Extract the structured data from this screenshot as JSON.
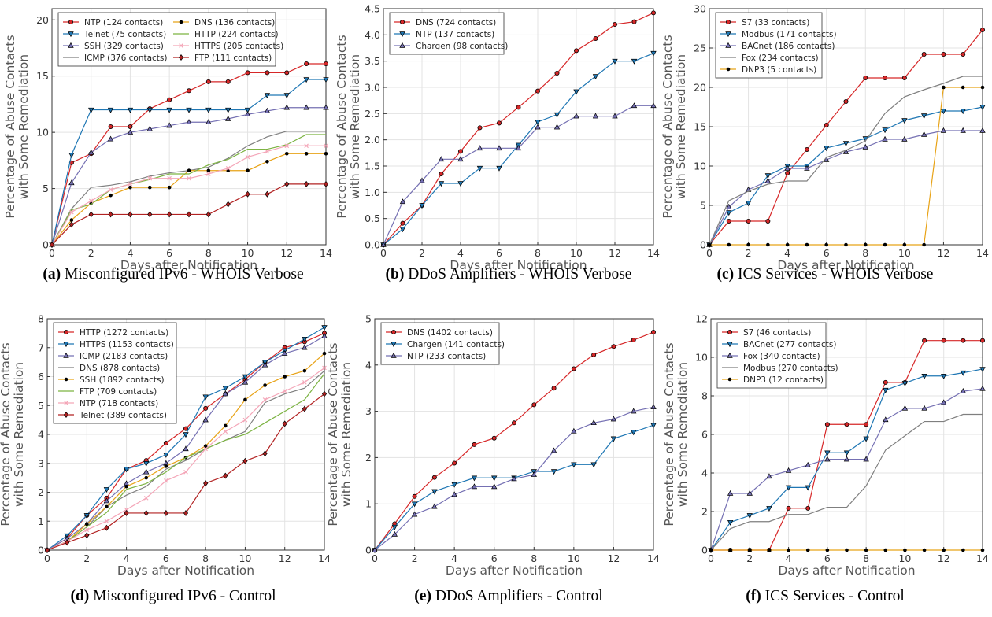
{
  "chart_data": [
    {
      "id": "a",
      "type": "line",
      "caption_label": "(a)",
      "caption": "Misconfigured IPv6 - WHOIS Verbose",
      "xlabel": "Days after Notification",
      "ylabel": [
        "Percentage of Abuse Contacts",
        "with Some Remediation"
      ],
      "xlim": [
        0,
        14
      ],
      "ylim": [
        0,
        21
      ],
      "xticks": [
        0,
        2,
        4,
        6,
        8,
        10,
        12,
        14
      ],
      "yticks": [
        0,
        5,
        10,
        15,
        20
      ],
      "grid": true,
      "legend_position": "top-left",
      "legend_columns": 2,
      "x": [
        0,
        1,
        2,
        3,
        4,
        5,
        6,
        7,
        8,
        9,
        10,
        11,
        12,
        13,
        14
      ],
      "series": [
        {
          "name": "NTP (124 contacts)",
          "color": "#d62728",
          "marker": "circle",
          "values": [
            0,
            7.3,
            8.1,
            10.5,
            10.5,
            12.1,
            12.9,
            13.7,
            14.5,
            14.5,
            15.3,
            15.3,
            15.3,
            16.1,
            16.1
          ]
        },
        {
          "name": "Telnet (75 contacts)",
          "color": "#1f77b4",
          "marker": "tri-down",
          "values": [
            0,
            8.0,
            12.0,
            12.0,
            12.0,
            12.0,
            12.0,
            12.0,
            12.0,
            12.0,
            12.0,
            13.3,
            13.3,
            14.7,
            14.7
          ]
        },
        {
          "name": "SSH (329 contacts)",
          "color": "#7570b3",
          "marker": "tri-up",
          "values": [
            0,
            5.5,
            8.2,
            9.4,
            10.0,
            10.3,
            10.6,
            10.9,
            10.9,
            11.2,
            11.6,
            11.9,
            12.2,
            12.2,
            12.2
          ]
        },
        {
          "name": "ICMP (376 contacts)",
          "color": "#7f7f7f",
          "marker": "none",
          "values": [
            0,
            3.2,
            5.1,
            5.3,
            5.6,
            6.1,
            6.4,
            6.6,
            6.9,
            7.7,
            8.8,
            9.6,
            10.1,
            10.1,
            10.1
          ]
        },
        {
          "name": "DNS (136 contacts)",
          "color": "#e8a317",
          "marker": "dot",
          "values": [
            0,
            2.2,
            3.7,
            4.4,
            5.1,
            5.1,
            5.1,
            6.6,
            6.6,
            6.6,
            6.6,
            7.4,
            8.1,
            8.1,
            8.1
          ]
        },
        {
          "name": "HTTP (224 contacts)",
          "color": "#7cb342",
          "marker": "none",
          "values": [
            0,
            3.1,
            3.6,
            4.9,
            5.4,
            5.8,
            6.3,
            6.3,
            7.1,
            7.6,
            8.5,
            8.5,
            8.9,
            9.8,
            9.8
          ]
        },
        {
          "name": "HTTPS (205 contacts)",
          "color": "#f4a6b8",
          "marker": "cross",
          "values": [
            0,
            2.9,
            3.9,
            4.9,
            5.4,
            5.9,
            5.9,
            5.9,
            6.3,
            6.8,
            7.8,
            8.3,
            8.8,
            8.8,
            8.8
          ]
        },
        {
          "name": "FTP (111 contacts)",
          "color": "#b22222",
          "marker": "diamond",
          "values": [
            0,
            1.8,
            2.7,
            2.7,
            2.7,
            2.7,
            2.7,
            2.7,
            2.7,
            3.6,
            4.5,
            4.5,
            5.4,
            5.4,
            5.4
          ]
        }
      ]
    },
    {
      "id": "b",
      "type": "line",
      "caption_label": "(b)",
      "caption": "DDoS Amplifiers - WHOIS Verbose",
      "xlabel": "Days after Notification",
      "ylabel": [
        "Percentage of Abuse Contacts",
        "with Some Remediation"
      ],
      "xlim": [
        0,
        14
      ],
      "ylim": [
        0,
        4.5
      ],
      "xticks": [
        0,
        2,
        4,
        6,
        8,
        10,
        12,
        14
      ],
      "yticks": [
        "0.0",
        "0.5",
        "1.0",
        "1.5",
        "2.0",
        "2.5",
        "3.0",
        "3.5",
        "4.0",
        "4.5"
      ],
      "grid": true,
      "legend_position": "top-left",
      "legend_columns": 1,
      "x": [
        0,
        1,
        2,
        3,
        4,
        5,
        6,
        7,
        8,
        9,
        10,
        11,
        12,
        13,
        14
      ],
      "series": [
        {
          "name": "DNS (724 contacts)",
          "color": "#d62728",
          "marker": "circle",
          "values": [
            0,
            0.41,
            0.75,
            1.35,
            1.78,
            2.23,
            2.32,
            2.62,
            2.93,
            3.27,
            3.7,
            3.93,
            4.2,
            4.25,
            4.42
          ]
        },
        {
          "name": "NTP (137 contacts)",
          "color": "#1f77b4",
          "marker": "tri-down",
          "values": [
            0,
            0.3,
            0.75,
            1.17,
            1.17,
            1.46,
            1.46,
            1.9,
            2.34,
            2.48,
            2.92,
            3.21,
            3.5,
            3.5,
            3.65
          ]
        },
        {
          "name": "Chargen (98 contacts)",
          "color": "#7570b3",
          "marker": "tri-up",
          "values": [
            0,
            0.82,
            1.22,
            1.63,
            1.63,
            1.84,
            1.84,
            1.84,
            2.24,
            2.24,
            2.45,
            2.45,
            2.45,
            2.65,
            2.65
          ]
        }
      ]
    },
    {
      "id": "c",
      "type": "line",
      "caption_label": "(c)",
      "caption": "ICS Services - WHOIS Verbose",
      "xlabel": "Days after Notification",
      "ylabel": [
        "Percentage of Abuse Contacts",
        "with Some Remediation"
      ],
      "xlim": [
        0,
        14
      ],
      "ylim": [
        0,
        30
      ],
      "xticks": [
        0,
        2,
        4,
        6,
        8,
        10,
        12,
        14
      ],
      "yticks": [
        0,
        5,
        10,
        15,
        20,
        25,
        30
      ],
      "grid": true,
      "legend_position": "top-left",
      "legend_columns": 1,
      "x": [
        0,
        1,
        2,
        3,
        4,
        5,
        6,
        7,
        8,
        9,
        10,
        11,
        12,
        13,
        14
      ],
      "series": [
        {
          "name": "S7 (33 contacts)",
          "color": "#d62728",
          "marker": "circle",
          "values": [
            0,
            3.0,
            3.0,
            3.0,
            9.1,
            12.1,
            15.2,
            18.2,
            21.2,
            21.2,
            21.2,
            24.2,
            24.2,
            24.2,
            27.3
          ]
        },
        {
          "name": "Modbus (171 contacts)",
          "color": "#1f77b4",
          "marker": "tri-down",
          "values": [
            0,
            4.1,
            5.3,
            8.8,
            10.0,
            10.0,
            12.3,
            12.9,
            13.5,
            14.6,
            15.8,
            16.4,
            17.0,
            17.0,
            17.5
          ]
        },
        {
          "name": "BACnet (186 contacts)",
          "color": "#7570b3",
          "marker": "tri-up",
          "values": [
            0,
            4.8,
            7.0,
            8.1,
            9.7,
            9.7,
            10.8,
            11.8,
            12.4,
            13.4,
            13.4,
            14.0,
            14.5,
            14.5,
            14.5
          ]
        },
        {
          "name": "Fox (234 contacts)",
          "color": "#7f7f7f",
          "marker": "none",
          "values": [
            0,
            5.6,
            6.8,
            7.7,
            8.1,
            8.1,
            11.1,
            12.0,
            13.2,
            16.7,
            18.8,
            19.7,
            20.5,
            21.4,
            21.4
          ]
        },
        {
          "name": "DNP3 (5 contacts)",
          "color": "#e8a317",
          "marker": "dot",
          "values": [
            0,
            0,
            0,
            0,
            0,
            0,
            0,
            0,
            0,
            0,
            0,
            0,
            20.0,
            20.0,
            20.0
          ]
        }
      ]
    },
    {
      "id": "d",
      "type": "line",
      "caption_label": "(d)",
      "caption": "Misconfigured IPv6 - Control",
      "xlabel": "Days after Notification",
      "ylabel": [
        "Percentage of Abuse Contacts",
        "with Some Remediation"
      ],
      "xlim": [
        0,
        14
      ],
      "ylim": [
        0,
        8
      ],
      "xticks": [
        0,
        2,
        4,
        6,
        8,
        10,
        12,
        14
      ],
      "yticks": [
        0,
        1,
        2,
        3,
        4,
        5,
        6,
        7,
        8
      ],
      "grid": true,
      "legend_position": "top-left",
      "legend_columns": 1,
      "x": [
        0,
        1,
        2,
        3,
        4,
        5,
        6,
        7,
        8,
        9,
        10,
        11,
        12,
        13,
        14
      ],
      "series": [
        {
          "name": "HTTP (1272 contacts)",
          "color": "#d62728",
          "marker": "circle",
          "values": [
            0,
            0.4,
            1.2,
            1.8,
            2.8,
            3.1,
            3.7,
            4.2,
            4.9,
            5.4,
            5.9,
            6.5,
            7.0,
            7.2,
            7.5
          ]
        },
        {
          "name": "HTTPS (1153 contacts)",
          "color": "#1f77b4",
          "marker": "tri-down",
          "values": [
            0,
            0.5,
            1.2,
            2.1,
            2.8,
            3.0,
            3.3,
            4.0,
            5.3,
            5.6,
            6.0,
            6.5,
            6.9,
            7.3,
            7.7
          ]
        },
        {
          "name": "ICMP (2183 contacts)",
          "color": "#7570b3",
          "marker": "tri-up",
          "values": [
            0,
            0.4,
            0.9,
            1.7,
            2.3,
            2.7,
            3.0,
            3.5,
            4.5,
            5.4,
            5.8,
            6.4,
            6.8,
            7.0,
            7.4
          ]
        },
        {
          "name": "DNS (878 contacts)",
          "color": "#7f7f7f",
          "marker": "none",
          "values": [
            0,
            0.3,
            0.8,
            1.5,
            1.9,
            2.2,
            2.8,
            3.1,
            3.5,
            3.8,
            4.1,
            5.1,
            5.4,
            5.6,
            6.2
          ]
        },
        {
          "name": "SSH (1892 contacts)",
          "color": "#e8a317",
          "marker": "dot",
          "values": [
            0,
            0.3,
            0.9,
            1.5,
            2.2,
            2.5,
            2.9,
            3.2,
            3.6,
            4.3,
            5.2,
            5.7,
            6.0,
            6.2,
            6.8
          ]
        },
        {
          "name": "FTP (709 contacts)",
          "color": "#7cb342",
          "marker": "none",
          "values": [
            0,
            0.3,
            0.8,
            1.3,
            2.1,
            2.3,
            2.7,
            3.2,
            3.5,
            3.8,
            4.0,
            4.4,
            4.8,
            5.2,
            6.1
          ]
        },
        {
          "name": "NTP (718 contacts)",
          "color": "#f4a6b8",
          "marker": "cross",
          "values": [
            0,
            0.3,
            0.7,
            1.0,
            1.4,
            1.8,
            2.4,
            2.7,
            3.5,
            4.1,
            4.5,
            5.2,
            5.5,
            5.8,
            6.3
          ]
        },
        {
          "name": "Telnet (389 contacts)",
          "color": "#b22222",
          "marker": "diamond",
          "values": [
            0,
            0.26,
            0.51,
            0.77,
            1.28,
            1.28,
            1.28,
            1.28,
            2.31,
            2.57,
            3.08,
            3.34,
            4.37,
            4.88,
            5.4
          ]
        }
      ]
    },
    {
      "id": "e",
      "type": "line",
      "caption_label": "(e)",
      "caption": "DDoS Amplifiers - Control",
      "xlabel": "Days after Notification",
      "ylabel": [
        "Percentage of Abuse Contacts",
        "with Some Remediation"
      ],
      "xlim": [
        0,
        14
      ],
      "ylim": [
        0,
        5
      ],
      "xticks": [
        0,
        2,
        4,
        6,
        8,
        10,
        12,
        14
      ],
      "yticks": [
        0,
        1,
        2,
        3,
        4,
        5
      ],
      "grid": true,
      "legend_position": "top-left",
      "legend_columns": 1,
      "x": [
        0,
        1,
        2,
        3,
        4,
        5,
        6,
        7,
        8,
        9,
        10,
        11,
        12,
        13,
        14
      ],
      "series": [
        {
          "name": "DNS (1402 contacts)",
          "color": "#d62728",
          "marker": "circle",
          "values": [
            0,
            0.57,
            1.16,
            1.57,
            1.88,
            2.28,
            2.42,
            2.75,
            3.14,
            3.5,
            3.92,
            4.22,
            4.4,
            4.54,
            4.71
          ]
        },
        {
          "name": "Chargen (141 contacts)",
          "color": "#1f77b4",
          "marker": "tri-down",
          "values": [
            0,
            0.5,
            1.0,
            1.27,
            1.42,
            1.56,
            1.56,
            1.56,
            1.7,
            1.7,
            1.85,
            1.85,
            2.41,
            2.55,
            2.7
          ]
        },
        {
          "name": "NTP (233 contacts)",
          "color": "#7570b3",
          "marker": "tri-up",
          "values": [
            0,
            0.34,
            0.77,
            0.94,
            1.2,
            1.37,
            1.37,
            1.54,
            1.63,
            2.15,
            2.57,
            2.75,
            2.83,
            3.0,
            3.09
          ]
        }
      ]
    },
    {
      "id": "f",
      "type": "line",
      "caption_label": "(f)",
      "caption": "ICS Services - Control",
      "xlabel": "Days after Notification",
      "ylabel": [
        "Percentage of Abuse Contacts",
        "with Some Remediation"
      ],
      "xlim": [
        0,
        14
      ],
      "ylim": [
        0,
        12
      ],
      "xticks": [
        0,
        2,
        4,
        6,
        8,
        10,
        12,
        14
      ],
      "yticks": [
        0,
        2,
        4,
        6,
        8,
        10,
        12
      ],
      "grid": true,
      "legend_position": "top-left",
      "legend_columns": 1,
      "x": [
        0,
        1,
        2,
        3,
        4,
        5,
        6,
        7,
        8,
        9,
        10,
        11,
        12,
        13,
        14
      ],
      "series": [
        {
          "name": "S7 (46 contacts)",
          "color": "#d62728",
          "marker": "circle",
          "values": [
            0,
            0,
            0,
            0,
            2.17,
            2.17,
            6.52,
            6.52,
            6.52,
            8.7,
            8.7,
            10.87,
            10.87,
            10.87,
            10.87
          ]
        },
        {
          "name": "BACnet (277 contacts)",
          "color": "#1f77b4",
          "marker": "tri-down",
          "values": [
            0,
            1.44,
            1.8,
            2.17,
            3.25,
            3.25,
            5.05,
            5.05,
            5.78,
            8.3,
            8.66,
            9.03,
            9.03,
            9.2,
            9.39
          ]
        },
        {
          "name": "Fox (340 contacts)",
          "color": "#7570b3",
          "marker": "tri-up",
          "values": [
            0,
            2.94,
            2.94,
            3.82,
            4.12,
            4.41,
            4.71,
            4.71,
            4.71,
            6.76,
            7.35,
            7.35,
            7.65,
            8.24,
            8.37
          ]
        },
        {
          "name": "Modbus (270 contacts)",
          "color": "#7f7f7f",
          "marker": "none",
          "values": [
            0,
            1.11,
            1.48,
            1.48,
            1.85,
            1.85,
            2.22,
            2.22,
            3.33,
            5.19,
            5.93,
            6.67,
            6.67,
            7.04,
            7.04
          ]
        },
        {
          "name": "DNP3 (12 contacts)",
          "color": "#e8a317",
          "marker": "dot",
          "values": [
            0,
            0,
            0,
            0,
            0,
            0,
            0,
            0,
            0,
            0,
            0,
            0,
            0,
            0,
            0
          ]
        }
      ]
    }
  ]
}
